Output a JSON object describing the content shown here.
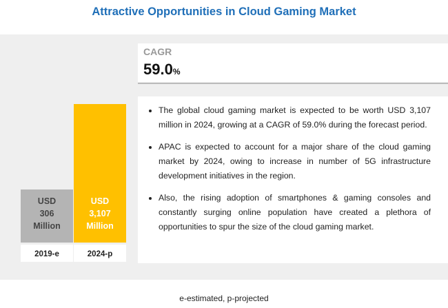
{
  "chart_data": {
    "type": "bar",
    "title": "Attractive Opportunities in Cloud Gaming Market",
    "categories": [
      "2019-e",
      "2024-p"
    ],
    "values": [
      306,
      3107
    ],
    "value_labels": [
      "USD 306 Million",
      "USD 3,107 Million"
    ],
    "colors": [
      "#b4b4b4",
      "#ffc000"
    ],
    "cagr": {
      "label": "CAGR",
      "value": "59.0",
      "unit": "%"
    },
    "bullets": [
      "The global cloud gaming market is expected to be worth USD 3,107 million in 2024, growing at a CAGR of 59.0% during the forecast period.",
      "APAC is expected to account for a major share of the cloud gaming market by 2024, owing to increase in number of 5G infrastructure development initiatives in the region.",
      "Also, the rising adoption of smartphones & gaming consoles and constantly surging online population have created a plethora of opportunities to spur the size of the cloud gaming market."
    ],
    "footnote": "e-estimated, p-projected"
  }
}
